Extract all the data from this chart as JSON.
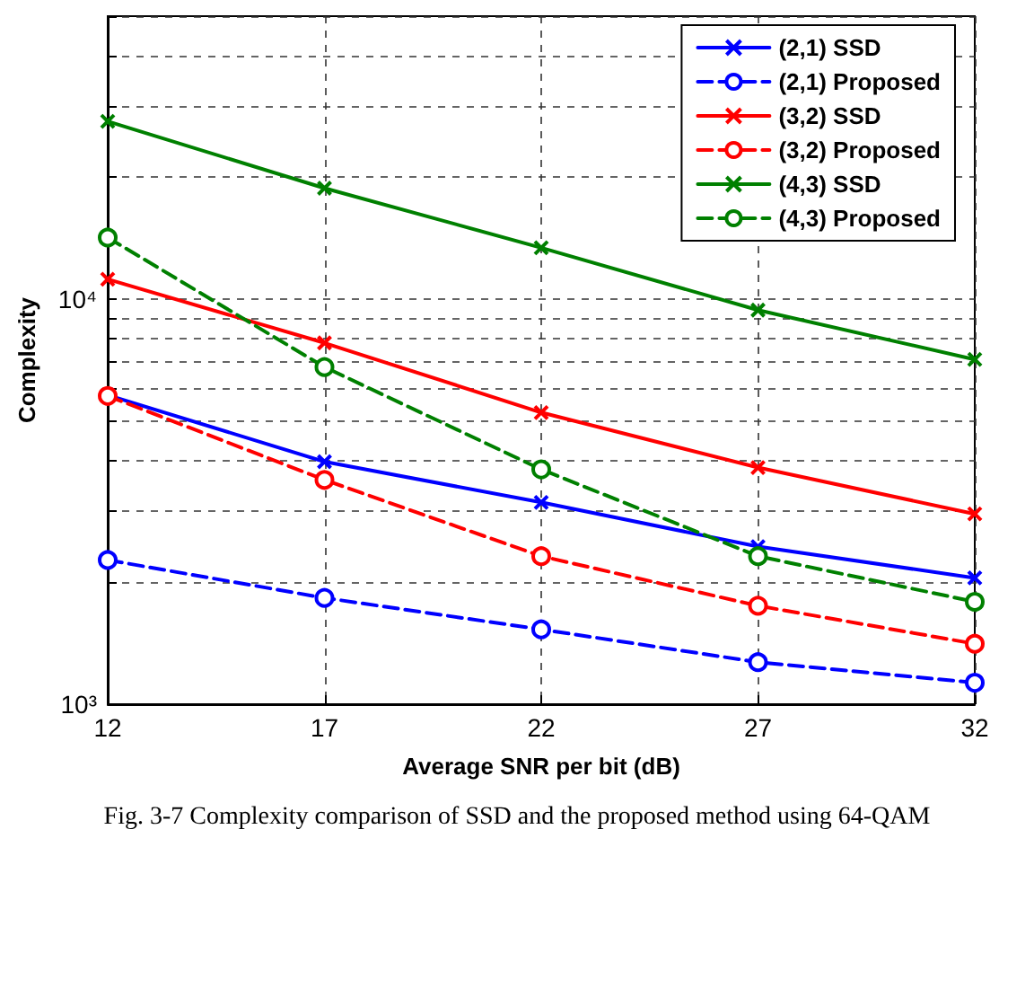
{
  "chart_data": {
    "type": "line",
    "xlabel": "Average SNR per bit (dB)",
    "ylabel": "Complexity",
    "annotations": [
      "Fig. 3-7 Complexity comparison of SSD and the proposed method using 64-QAM"
    ],
    "x": [
      12,
      17,
      22,
      27,
      32
    ],
    "xlim": [
      12,
      32
    ],
    "xticks": [
      12,
      17,
      22,
      27,
      32
    ],
    "log": "y",
    "ylim": [
      1000,
      50000
    ],
    "yticks": [
      {
        "value": 1000,
        "label": "10³"
      },
      {
        "value": 2000,
        "label": null
      },
      {
        "value": 3000,
        "label": null
      },
      {
        "value": 4000,
        "label": null
      },
      {
        "value": 5000,
        "label": null
      },
      {
        "value": 6000,
        "label": null
      },
      {
        "value": 7000,
        "label": null
      },
      {
        "value": 8000,
        "label": null
      },
      {
        "value": 9000,
        "label": null
      },
      {
        "value": 10000,
        "label": "10⁴"
      },
      {
        "value": 20000,
        "label": null
      },
      {
        "value": 30000,
        "label": null
      },
      {
        "value": 40000,
        "label": null
      },
      {
        "value": 50000,
        "label": null
      }
    ],
    "grid": true,
    "legend": "top right",
    "series": [
      {
        "name": "(2,1) SSD",
        "color": "#0000ff",
        "marker": "cross",
        "line_style": "solid",
        "values": [
          5800,
          3970,
          3150,
          2450,
          2050
        ]
      },
      {
        "name": "(2,1) Proposed",
        "color": "#0000ff",
        "marker": "circle",
        "line_style": "dashed",
        "values": [
          2270,
          1830,
          1530,
          1270,
          1130
        ]
      },
      {
        "name": "(3,2) SSD",
        "color": "#ff0000",
        "marker": "cross",
        "line_style": "solid",
        "values": [
          11200,
          7800,
          5250,
          3840,
          2950
        ]
      },
      {
        "name": "(3,2) Proposed",
        "color": "#ff0000",
        "marker": "circle",
        "line_style": "dashed",
        "values": [
          5770,
          3580,
          2320,
          1750,
          1410
        ]
      },
      {
        "name": "(4,3) SSD",
        "color": "#008000",
        "marker": "cross",
        "line_style": "solid",
        "values": [
          27500,
          18800,
          13400,
          9400,
          7100
        ]
      },
      {
        "name": "(4,3) Proposed",
        "color": "#008000",
        "marker": "circle",
        "line_style": "dashed",
        "values": [
          14200,
          6800,
          3800,
          2320,
          1790
        ]
      }
    ]
  }
}
